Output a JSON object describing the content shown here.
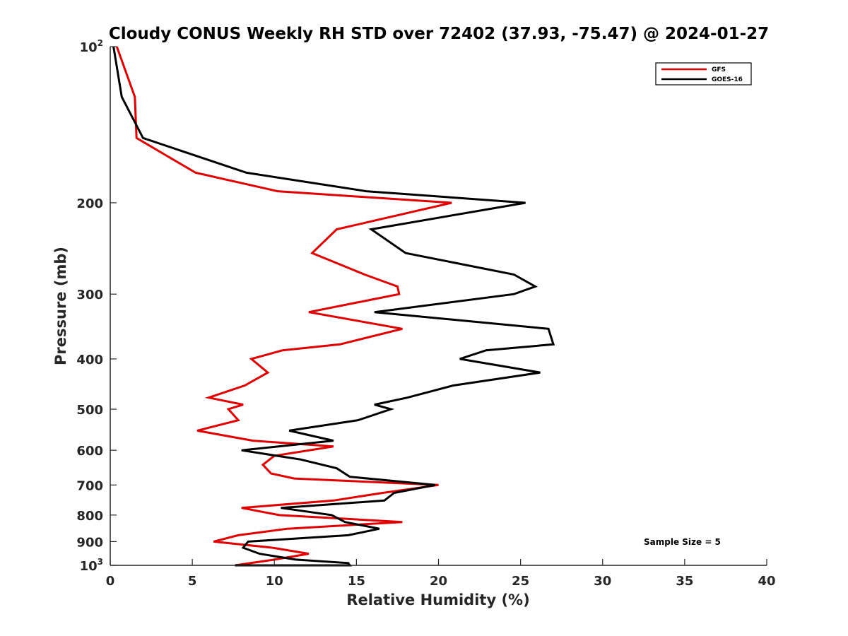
{
  "chart_data": {
    "type": "line",
    "title": "Cloudy CONUS Weekly RH STD over 72402 (37.93, -75.47) @ 2024-01-27",
    "xlabel": "Relative Humidity (%)",
    "ylabel": "Pressure (mb)",
    "xlim": [
      0,
      40
    ],
    "ylim": [
      100,
      1000
    ],
    "yscale": "log",
    "y_reversed": true,
    "grid": false,
    "legend_position": "top-right",
    "x_ticks": [
      0,
      5,
      10,
      15,
      20,
      25,
      30,
      35,
      40
    ],
    "y_ticks": [
      {
        "value": 100,
        "base": "10",
        "exp": "2"
      },
      {
        "value": 200,
        "label": "200"
      },
      {
        "value": 300,
        "label": "300"
      },
      {
        "value": 400,
        "label": "400"
      },
      {
        "value": 500,
        "label": "500"
      },
      {
        "value": 600,
        "label": "600"
      },
      {
        "value": 700,
        "label": "700"
      },
      {
        "value": 800,
        "label": "800"
      },
      {
        "value": 900,
        "label": "900"
      },
      {
        "value": 1000,
        "base": "10",
        "exp": "3"
      }
    ],
    "series": [
      {
        "name": "GFS",
        "color": "#e00000",
        "points": [
          [
            0.4,
            100
          ],
          [
            1.5,
            125
          ],
          [
            1.6,
            150
          ],
          [
            5.2,
            175
          ],
          [
            10.2,
            190
          ],
          [
            20.8,
            200
          ],
          [
            13.8,
            225
          ],
          [
            12.3,
            250
          ],
          [
            15.5,
            275
          ],
          [
            17.5,
            290
          ],
          [
            17.6,
            300
          ],
          [
            12.1,
            325
          ],
          [
            17.8,
            350
          ],
          [
            14.0,
            375
          ],
          [
            10.5,
            385
          ],
          [
            8.6,
            400
          ],
          [
            9.6,
            425
          ],
          [
            8.2,
            450
          ],
          [
            6.0,
            475
          ],
          [
            8.1,
            490
          ],
          [
            7.2,
            500
          ],
          [
            7.8,
            525
          ],
          [
            5.3,
            550
          ],
          [
            8.7,
            575
          ],
          [
            13.6,
            590
          ],
          [
            10.0,
            615
          ],
          [
            9.3,
            640
          ],
          [
            9.8,
            665
          ],
          [
            11.2,
            680
          ],
          [
            20.0,
            700
          ],
          [
            16.6,
            725
          ],
          [
            13.6,
            750
          ],
          [
            8.0,
            775
          ],
          [
            10.3,
            800
          ],
          [
            17.8,
            825
          ],
          [
            10.8,
            850
          ],
          [
            7.8,
            875
          ],
          [
            6.3,
            900
          ],
          [
            9.9,
            925
          ],
          [
            12.1,
            950
          ],
          [
            10.0,
            975
          ],
          [
            7.6,
            1000
          ]
        ]
      },
      {
        "name": "GOES-16",
        "color": "#000000",
        "points": [
          [
            0.2,
            100
          ],
          [
            0.7,
            125
          ],
          [
            2.0,
            150
          ],
          [
            8.3,
            175
          ],
          [
            15.6,
            190
          ],
          [
            25.3,
            200
          ],
          [
            15.9,
            225
          ],
          [
            18.0,
            250
          ],
          [
            24.6,
            275
          ],
          [
            25.9,
            290
          ],
          [
            24.6,
            300
          ],
          [
            16.1,
            325
          ],
          [
            26.7,
            350
          ],
          [
            27.0,
            375
          ],
          [
            22.9,
            385
          ],
          [
            21.3,
            400
          ],
          [
            26.2,
            425
          ],
          [
            20.9,
            450
          ],
          [
            18.1,
            475
          ],
          [
            16.1,
            490
          ],
          [
            17.1,
            500
          ],
          [
            15.1,
            525
          ],
          [
            10.9,
            550
          ],
          [
            13.6,
            575
          ],
          [
            8.0,
            600
          ],
          [
            11.6,
            625
          ],
          [
            13.8,
            650
          ],
          [
            14.6,
            675
          ],
          [
            19.8,
            700
          ],
          [
            17.3,
            725
          ],
          [
            16.7,
            750
          ],
          [
            10.4,
            775
          ],
          [
            13.5,
            800
          ],
          [
            14.3,
            825
          ],
          [
            16.4,
            850
          ],
          [
            14.5,
            875
          ],
          [
            8.4,
            900
          ],
          [
            8.1,
            925
          ],
          [
            9.1,
            950
          ],
          [
            11.3,
            975
          ],
          [
            14.5,
            990
          ],
          [
            14.6,
            1000
          ],
          [
            7.6,
            1000
          ]
        ]
      }
    ],
    "annotation": "Sample Size = 5"
  }
}
